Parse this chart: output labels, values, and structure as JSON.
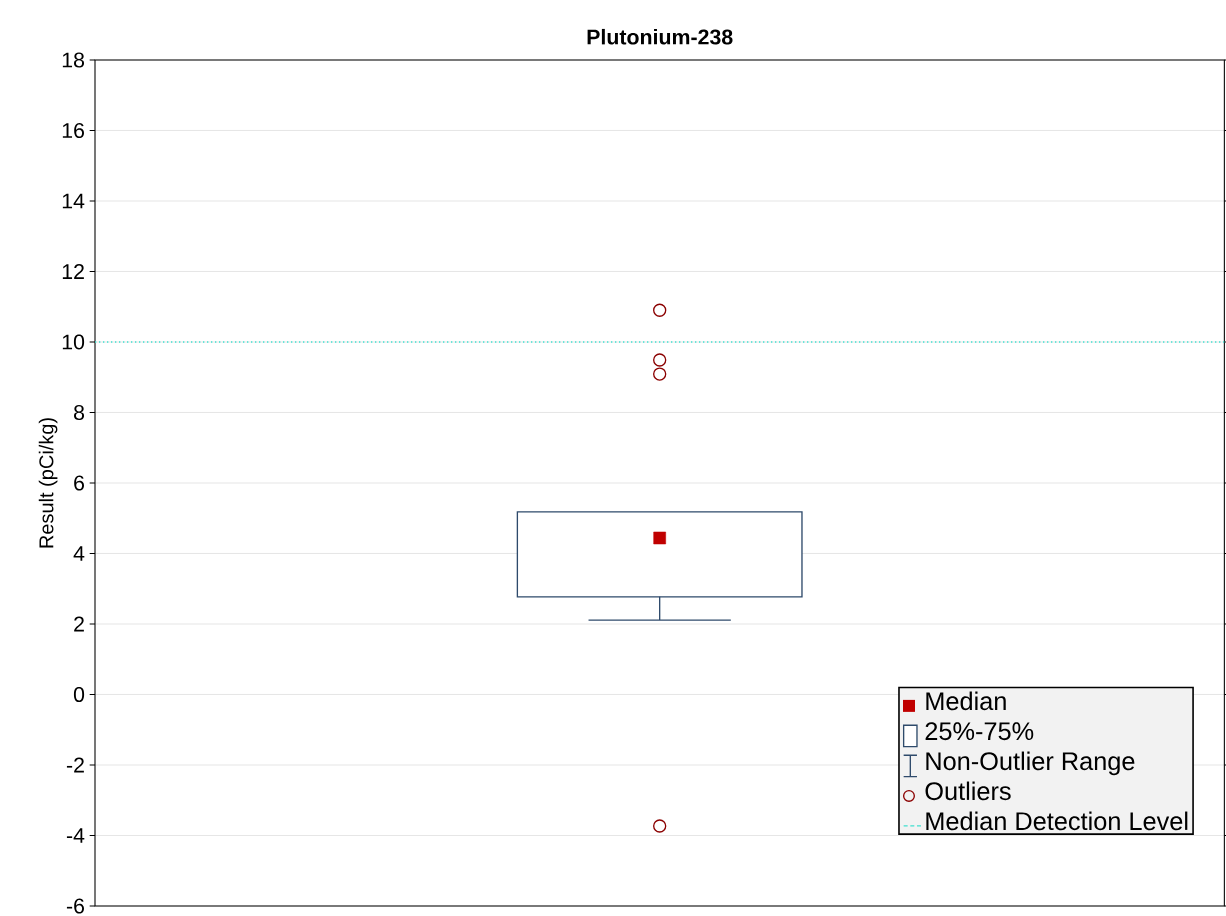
{
  "chart_data": {
    "type": "box",
    "title": "Plutonium-238",
    "ylabel": "Result (pCi/kg)",
    "categories": [
      null
    ],
    "boxes": [
      {
        "low": 2.11,
        "q1": 2.77,
        "median": 4.44,
        "q3": 5.18,
        "high": 5.18,
        "outliers": [
          10.9,
          9.49,
          9.09,
          -3.73
        ]
      }
    ],
    "color": "#2e4a6b",
    "annotations": [
      "Median",
      "25%-75%",
      "Non-Outlier Range",
      "Outliers"
    ],
    "ref_lines": [
      {
        "axis": "y",
        "value": 10,
        "label": "Median Detection Level",
        "color": "#40e0d0",
        "line_style": "dotted"
      }
    ],
    "ylim": [
      -6,
      18
    ],
    "yticks": [
      -6,
      -4,
      -2,
      0,
      2,
      4,
      6,
      8,
      10,
      12,
      14,
      16,
      18
    ],
    "grid": "y",
    "legend": "bottom right"
  }
}
